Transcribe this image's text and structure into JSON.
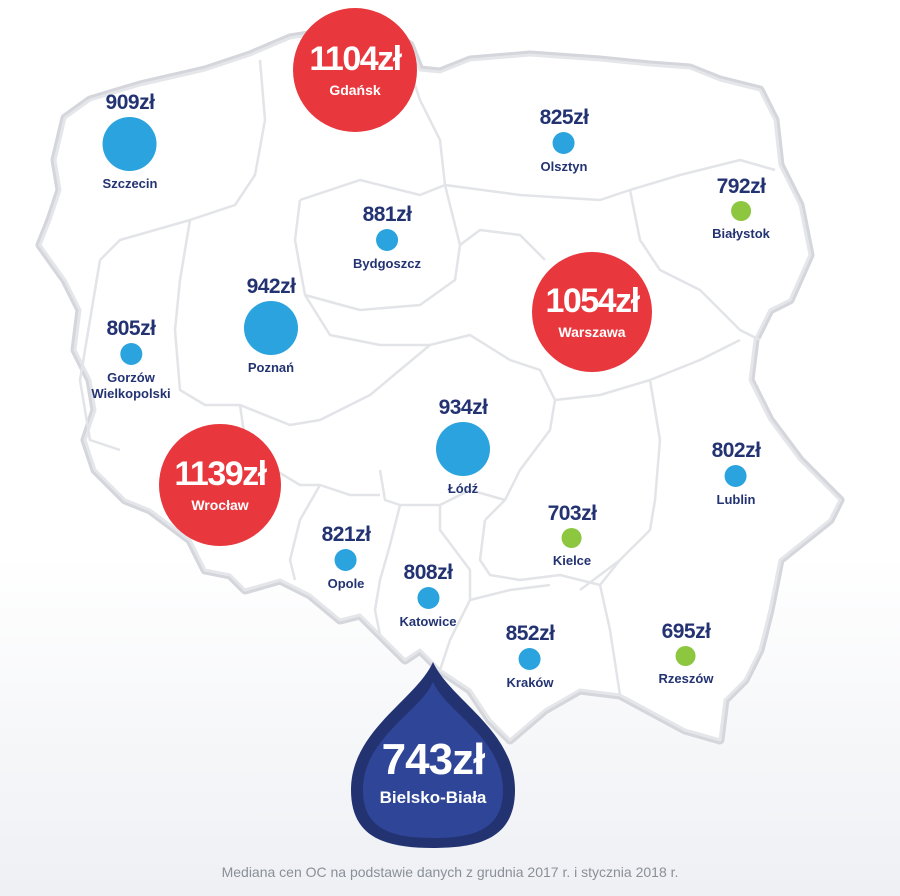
{
  "cities": {
    "szczecin": {
      "price": "909zł",
      "name": "Szczecin"
    },
    "gdansk": {
      "price": "1104zł",
      "name": "Gdańsk"
    },
    "olsztyn": {
      "price": "825zł",
      "name": "Olsztyn"
    },
    "bialystok": {
      "price": "792zł",
      "name": "Białystok"
    },
    "bydgoszcz": {
      "price": "881zł",
      "name": "Bydgoszcz"
    },
    "warszawa": {
      "price": "1054zł",
      "name": "Warszawa"
    },
    "poznan": {
      "price": "942zł",
      "name": "Poznań"
    },
    "gorzow": {
      "price": "805zł",
      "name_line1": "Gorzów",
      "name_line2": "Wielkopolski"
    },
    "lodz": {
      "price": "934zł",
      "name": "Łódź"
    },
    "wroclaw": {
      "price": "1139zł",
      "name": "Wrocław"
    },
    "lublin": {
      "price": "802zł",
      "name": "Lublin"
    },
    "opole": {
      "price": "821zł",
      "name": "Opole"
    },
    "kielce": {
      "price": "703zł",
      "name": "Kielce"
    },
    "katowice": {
      "price": "808zł",
      "name": "Katowice"
    },
    "krakow": {
      "price": "852zł",
      "name": "Kraków"
    },
    "rzeszow": {
      "price": "695zł",
      "name": "Rzeszów"
    },
    "bielsko": {
      "price": "743zł",
      "name": "Bielsko-Biała"
    }
  },
  "colors": {
    "high": "#e8383d",
    "mid": "#2aa3de",
    "low": "#8dc63f",
    "lowest": "#233372",
    "text": "#233372"
  },
  "footnote": "Mediana cen OC na podstawie danych z grudnia 2017 r. i stycznia 2018 r."
}
